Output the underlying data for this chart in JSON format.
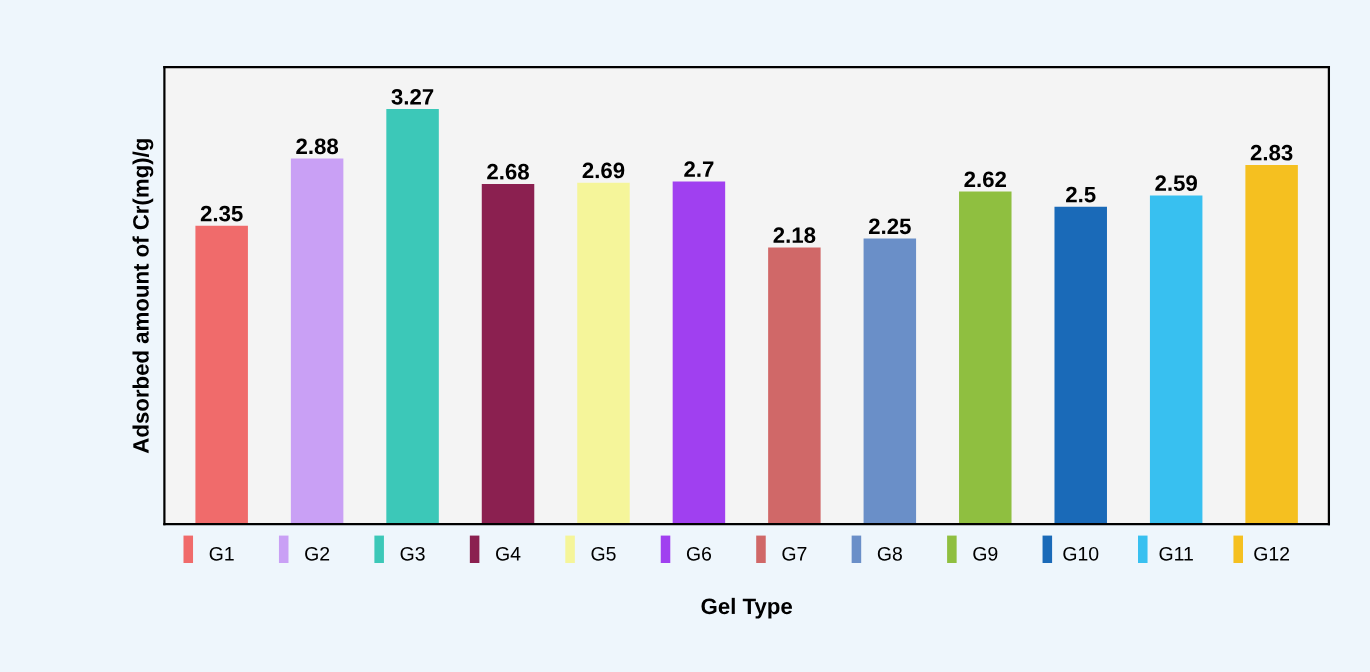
{
  "chart_data": {
    "type": "bar",
    "xlabel": "Gel Type",
    "ylabel": "Adsorbed amount of Cr(mg)/g",
    "categories": [
      "G1",
      "G2",
      "G3",
      "G4",
      "G5",
      "G6",
      "G7",
      "G8",
      "G9",
      "G10",
      "G11",
      "G12"
    ],
    "values": [
      2.35,
      2.88,
      3.27,
      2.68,
      2.69,
      2.7,
      2.18,
      2.25,
      2.62,
      2.5,
      2.59,
      2.83
    ],
    "colors": [
      "#f06b6b",
      "#c9a0f5",
      "#3cc8b8",
      "#8b2050",
      "#f5f59a",
      "#a040f0",
      "#d06868",
      "#6a8fc8",
      "#8fbf40",
      "#1a6ab8",
      "#38c0f0",
      "#f5c020"
    ],
    "data_labels": true,
    "tick_labels": "x",
    "ylim": [
      0,
      3.6
    ]
  }
}
